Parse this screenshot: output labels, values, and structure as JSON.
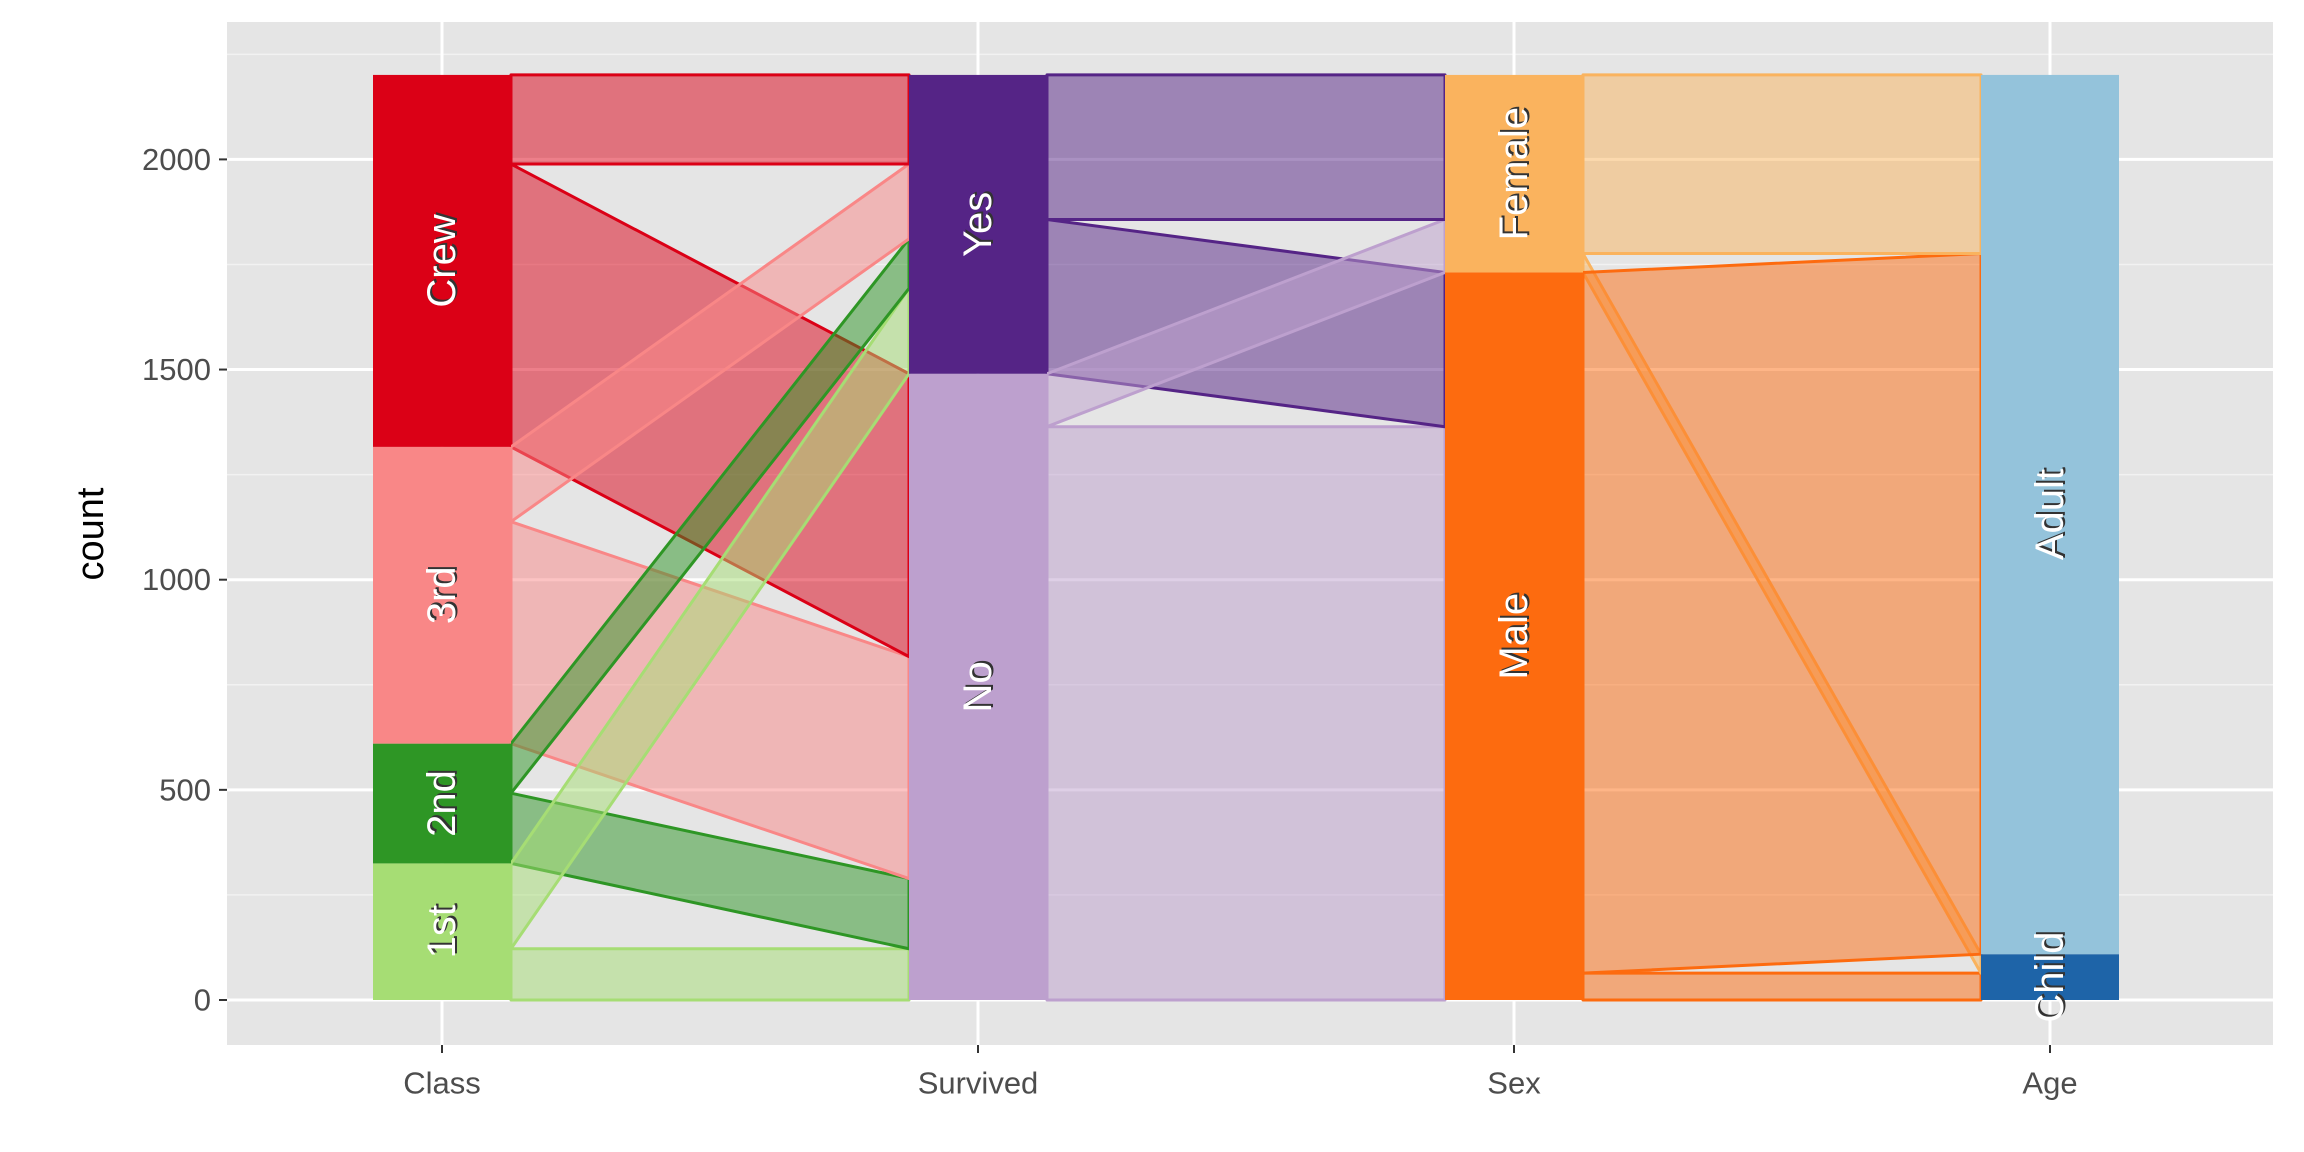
{
  "chart_data": {
    "type": "alluvial",
    "ylabel": "count",
    "ylim": [
      0,
      2201
    ],
    "yticks": [
      0,
      500,
      1000,
      1500,
      2000
    ],
    "grid": true,
    "axes": [
      {
        "name": "Class",
        "strata": [
          {
            "label": "1st",
            "value": 325,
            "color": "#A6DD74"
          },
          {
            "label": "2nd",
            "value": 285,
            "color": "#2E9625"
          },
          {
            "label": "3rd",
            "value": 706,
            "color": "#F98787"
          },
          {
            "label": "Crew",
            "value": 885,
            "color": "#DB0016"
          }
        ]
      },
      {
        "name": "Survived",
        "strata": [
          {
            "label": "No",
            "value": 1490,
            "color": "#BDA0CE"
          },
          {
            "label": "Yes",
            "value": 711,
            "color": "#552486"
          }
        ]
      },
      {
        "name": "Sex",
        "strata": [
          {
            "label": "Male",
            "value": 1731,
            "color": "#FD6B0F"
          },
          {
            "label": "Female",
            "value": 470,
            "color": "#FAB35E"
          }
        ]
      },
      {
        "name": "Age",
        "strata": [
          {
            "label": "Child",
            "value": 109,
            "color": "#1E64A8"
          },
          {
            "label": "Adult",
            "value": 2092,
            "color": "#94C3DB"
          }
        ]
      }
    ],
    "flows": [
      {
        "from_axis": "Class",
        "from": "1st",
        "to_axis": "Survived",
        "to": "No",
        "value": 122
      },
      {
        "from_axis": "Class",
        "from": "1st",
        "to_axis": "Survived",
        "to": "Yes",
        "value": 203
      },
      {
        "from_axis": "Class",
        "from": "2nd",
        "to_axis": "Survived",
        "to": "No",
        "value": 167
      },
      {
        "from_axis": "Class",
        "from": "2nd",
        "to_axis": "Survived",
        "to": "Yes",
        "value": 118
      },
      {
        "from_axis": "Class",
        "from": "3rd",
        "to_axis": "Survived",
        "to": "No",
        "value": 528
      },
      {
        "from_axis": "Class",
        "from": "3rd",
        "to_axis": "Survived",
        "to": "Yes",
        "value": 178
      },
      {
        "from_axis": "Class",
        "from": "Crew",
        "to_axis": "Survived",
        "to": "No",
        "value": 673
      },
      {
        "from_axis": "Class",
        "from": "Crew",
        "to_axis": "Survived",
        "to": "Yes",
        "value": 212
      },
      {
        "from_axis": "Survived",
        "from": "No",
        "to_axis": "Sex",
        "to": "Male",
        "value": 1364
      },
      {
        "from_axis": "Survived",
        "from": "No",
        "to_axis": "Sex",
        "to": "Female",
        "value": 126
      },
      {
        "from_axis": "Survived",
        "from": "Yes",
        "to_axis": "Sex",
        "to": "Male",
        "value": 367
      },
      {
        "from_axis": "Survived",
        "from": "Yes",
        "to_axis": "Sex",
        "to": "Female",
        "value": 344
      },
      {
        "from_axis": "Sex",
        "from": "Male",
        "to_axis": "Age",
        "to": "Child",
        "value": 64
      },
      {
        "from_axis": "Sex",
        "from": "Male",
        "to_axis": "Age",
        "to": "Adult",
        "value": 1667
      },
      {
        "from_axis": "Sex",
        "from": "Female",
        "to_axis": "Age",
        "to": "Child",
        "value": 45
      },
      {
        "from_axis": "Sex",
        "from": "Female",
        "to_axis": "Age",
        "to": "Adult",
        "value": 425
      }
    ]
  }
}
